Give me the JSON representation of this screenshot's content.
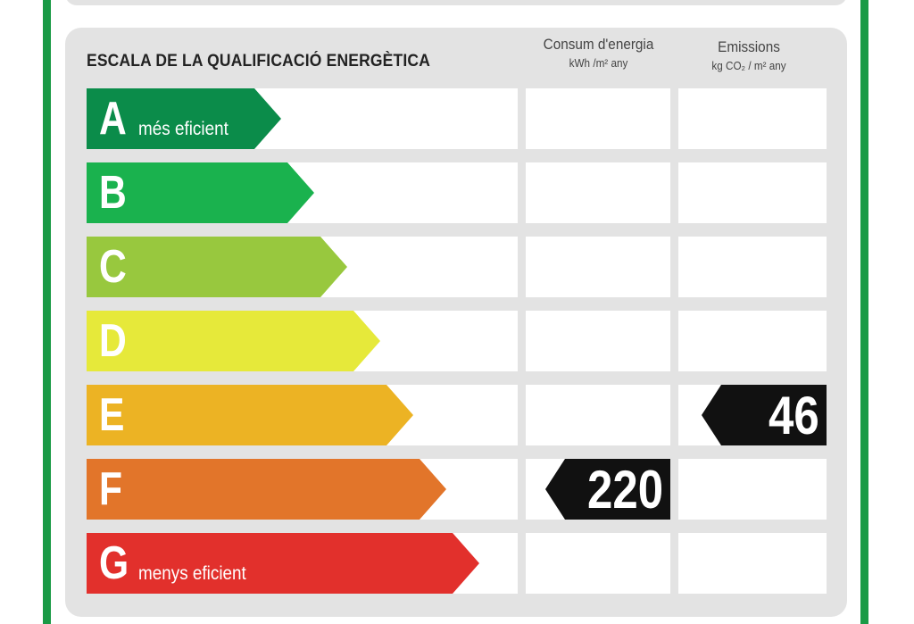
{
  "header": {
    "title": "ESCALA DE LA QUALIFICACIÓ ENERGÈTICA",
    "consum_label": "Consum d'energia",
    "consum_unit": "kWh /m² any",
    "emissions_label": "Emissions",
    "emissions_unit": "kg CO₂ / m² any"
  },
  "classes": [
    {
      "letter": "A",
      "sub": "més eficient",
      "color": "#0b8c4a"
    },
    {
      "letter": "B",
      "sub": "",
      "color": "#1ab24e"
    },
    {
      "letter": "C",
      "sub": "",
      "color": "#98c83e"
    },
    {
      "letter": "D",
      "sub": "",
      "color": "#e6e93a"
    },
    {
      "letter": "E",
      "sub": "",
      "color": "#ecb324"
    },
    {
      "letter": "F",
      "sub": "",
      "color": "#e2752a"
    },
    {
      "letter": "G",
      "sub": "menys eficient",
      "color": "#e2302c"
    }
  ],
  "ratings": {
    "consum": {
      "value": "220",
      "class": "F"
    },
    "emissions": {
      "value": "46",
      "class": "E"
    }
  },
  "colors": {
    "border": "#1a9a46",
    "panel": "#e3e3e3",
    "marker": "#111111"
  }
}
